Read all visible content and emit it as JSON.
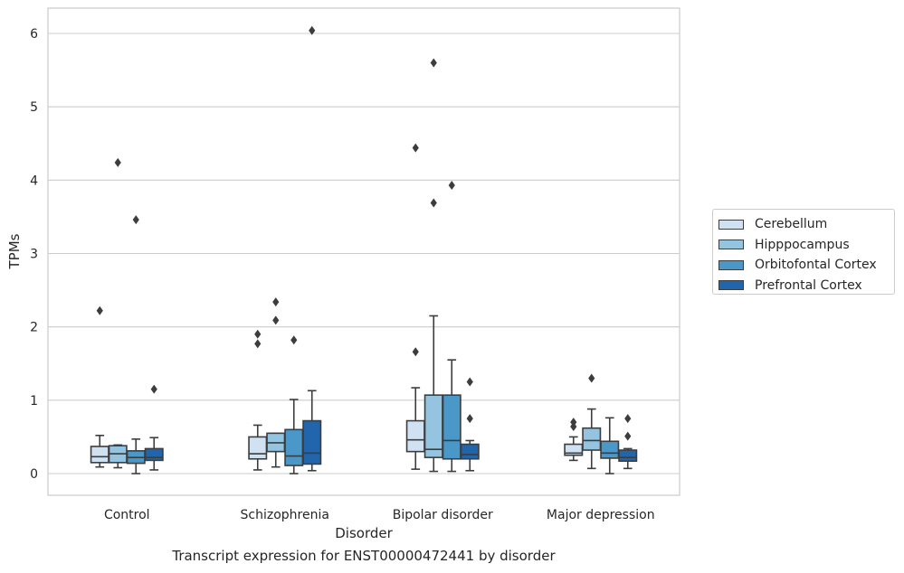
{
  "chart_data": {
    "type": "box",
    "title": "",
    "xlabel": "Disorder",
    "ylabel": "TPMs",
    "caption": "Transcript expression for ENST00000472441 by disorder",
    "categories": [
      "Control",
      "Schizophrenia",
      "Bipolar disorder",
      "Major depression"
    ],
    "ylim": [
      -0.3,
      6.35
    ],
    "yticks": [
      0,
      1,
      2,
      3,
      4,
      5,
      6
    ],
    "grid": "horizontal",
    "legend_position": "center-right",
    "series": [
      {
        "name": "Cerebellum",
        "color": "#d0e1f2",
        "boxes": [
          {
            "whislo": 0.09,
            "q1": 0.15,
            "med": 0.23,
            "q3": 0.37,
            "whishi": 0.52,
            "fliers": [
              2.22
            ]
          },
          {
            "whislo": 0.05,
            "q1": 0.2,
            "med": 0.27,
            "q3": 0.5,
            "whishi": 0.66,
            "fliers": [
              1.77,
              1.9
            ]
          },
          {
            "whislo": 0.06,
            "q1": 0.3,
            "med": 0.46,
            "q3": 0.72,
            "whishi": 1.17,
            "fliers": [
              1.66,
              4.44
            ]
          },
          {
            "whislo": 0.18,
            "q1": 0.25,
            "med": 0.28,
            "q3": 0.4,
            "whishi": 0.5,
            "fliers": [
              0.64,
              0.7
            ]
          }
        ]
      },
      {
        "name": "Hipppocampus",
        "color": "#94c4df",
        "boxes": [
          {
            "whislo": 0.08,
            "q1": 0.15,
            "med": 0.27,
            "q3": 0.38,
            "whishi": 0.39,
            "fliers": [
              4.24
            ]
          },
          {
            "whislo": 0.09,
            "q1": 0.3,
            "med": 0.42,
            "q3": 0.55,
            "whishi": 0.55,
            "fliers": [
              2.09,
              2.34
            ]
          },
          {
            "whislo": 0.03,
            "q1": 0.22,
            "med": 0.33,
            "q3": 1.07,
            "whishi": 2.15,
            "fliers": [
              3.69,
              5.6
            ]
          },
          {
            "whislo": 0.07,
            "q1": 0.32,
            "med": 0.45,
            "q3": 0.62,
            "whishi": 0.88,
            "fliers": [
              1.3
            ]
          }
        ]
      },
      {
        "name": "Orbitofontal Cortex",
        "color": "#4a98c9",
        "boxes": [
          {
            "whislo": 0.0,
            "q1": 0.14,
            "med": 0.22,
            "q3": 0.31,
            "whishi": 0.47,
            "fliers": [
              3.46
            ]
          },
          {
            "whislo": 0.0,
            "q1": 0.11,
            "med": 0.24,
            "q3": 0.6,
            "whishi": 1.01,
            "fliers": [
              1.82
            ]
          },
          {
            "whislo": 0.03,
            "q1": 0.2,
            "med": 0.45,
            "q3": 1.07,
            "whishi": 1.55,
            "fliers": [
              3.93
            ]
          },
          {
            "whislo": 0.0,
            "q1": 0.21,
            "med": 0.28,
            "q3": 0.44,
            "whishi": 0.76,
            "fliers": []
          }
        ]
      },
      {
        "name": "Prefrontal Cortex",
        "color": "#2166ac",
        "boxes": [
          {
            "whislo": 0.05,
            "q1": 0.18,
            "med": 0.22,
            "q3": 0.34,
            "whishi": 0.49,
            "fliers": [
              1.15
            ]
          },
          {
            "whislo": 0.04,
            "q1": 0.13,
            "med": 0.28,
            "q3": 0.72,
            "whishi": 1.13,
            "fliers": [
              6.04
            ]
          },
          {
            "whislo": 0.04,
            "q1": 0.2,
            "med": 0.26,
            "q3": 0.4,
            "whishi": 0.45,
            "fliers": [
              0.75,
              1.25
            ]
          },
          {
            "whislo": 0.07,
            "q1": 0.17,
            "med": 0.22,
            "q3": 0.32,
            "whishi": 0.34,
            "fliers": [
              0.51,
              0.75
            ]
          }
        ]
      }
    ]
  }
}
